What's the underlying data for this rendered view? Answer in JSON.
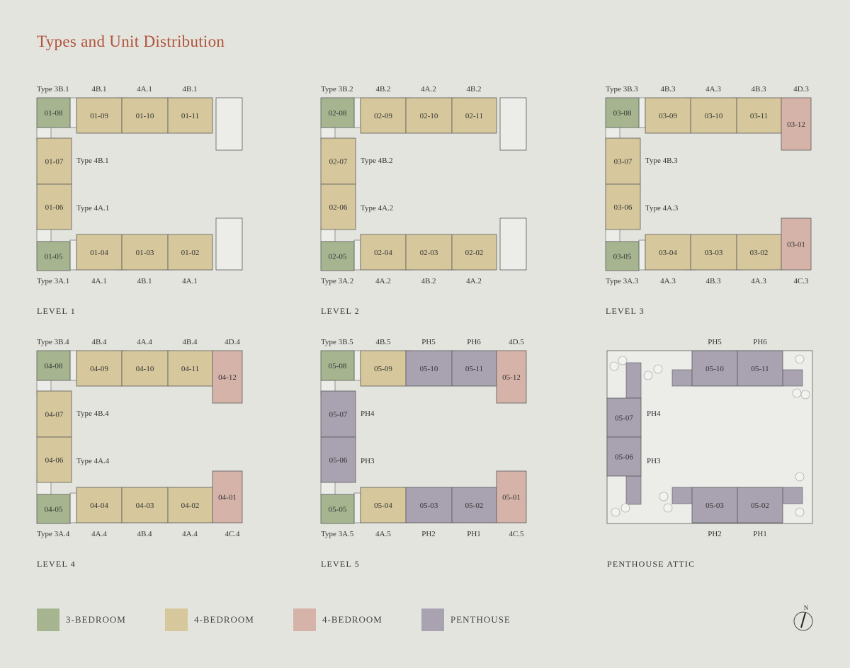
{
  "title": "Types and Unit Distribution",
  "colors": {
    "three_bedroom": "#a6b58f",
    "four_bedroom": "#d6c89c",
    "four_bedroom_corner": "#d5b3a9",
    "penthouse": "#a8a2b1",
    "background": "#e4e4df",
    "title": "#b0533b"
  },
  "levels": [
    {
      "name": "LEVEL 1",
      "top_labels": [
        "Type 3B.1",
        "4B.1",
        "4A.1",
        "4B.1",
        null
      ],
      "bottom_labels": [
        "Type 3A.1",
        "4A.1",
        "4B.1",
        "4A.1",
        null
      ],
      "side_labels": [
        "Type 4B.1",
        "Type 4A.1"
      ],
      "units": {
        "TL": [
          "01-08",
          "three_bedroom"
        ],
        "T1": [
          "01-09",
          "four_bedroom"
        ],
        "T2": [
          "01-10",
          "four_bedroom"
        ],
        "T3": [
          "01-11",
          "four_bedroom"
        ],
        "L1": [
          "01-07",
          "four_bedroom"
        ],
        "L2": [
          "01-06",
          "four_bedroom"
        ],
        "BL": [
          "01-05",
          "three_bedroom"
        ],
        "B1": [
          "01-04",
          "four_bedroom"
        ],
        "B2": [
          "01-03",
          "four_bedroom"
        ],
        "B3": [
          "01-02",
          "four_bedroom"
        ]
      }
    },
    {
      "name": "LEVEL 2",
      "top_labels": [
        "Type 3B.2",
        "4B.2",
        "4A.2",
        "4B.2",
        null
      ],
      "bottom_labels": [
        "Type 3A.2",
        "4A.2",
        "4B.2",
        "4A.2",
        null
      ],
      "side_labels": [
        "Type 4B.2",
        "Type 4A.2"
      ],
      "units": {
        "TL": [
          "02-08",
          "three_bedroom"
        ],
        "T1": [
          "02-09",
          "four_bedroom"
        ],
        "T2": [
          "02-10",
          "four_bedroom"
        ],
        "T3": [
          "02-11",
          "four_bedroom"
        ],
        "L1": [
          "02-07",
          "four_bedroom"
        ],
        "L2": [
          "02-06",
          "four_bedroom"
        ],
        "BL": [
          "02-05",
          "three_bedroom"
        ],
        "B1": [
          "02-04",
          "four_bedroom"
        ],
        "B2": [
          "02-03",
          "four_bedroom"
        ],
        "B3": [
          "02-02",
          "four_bedroom"
        ]
      }
    },
    {
      "name": "LEVEL 3",
      "top_labels": [
        "Type 3B.3",
        "4B.3",
        "4A.3",
        "4B.3",
        "4D.3"
      ],
      "bottom_labels": [
        "Type 3A.3",
        "4A.3",
        "4B.3",
        "4A.3",
        "4C.3"
      ],
      "side_labels": [
        "Type 4B.3",
        "Type 4A.3"
      ],
      "units": {
        "TL": [
          "03-08",
          "three_bedroom"
        ],
        "T1": [
          "03-09",
          "four_bedroom"
        ],
        "T2": [
          "03-10",
          "four_bedroom"
        ],
        "T3": [
          "03-11",
          "four_bedroom"
        ],
        "TR": [
          "03-12",
          "four_bedroom_corner"
        ],
        "L1": [
          "03-07",
          "four_bedroom"
        ],
        "L2": [
          "03-06",
          "four_bedroom"
        ],
        "BL": [
          "03-05",
          "three_bedroom"
        ],
        "B1": [
          "03-04",
          "four_bedroom"
        ],
        "B2": [
          "03-03",
          "four_bedroom"
        ],
        "B3": [
          "03-02",
          "four_bedroom"
        ],
        "BR": [
          "03-01",
          "four_bedroom_corner"
        ]
      }
    },
    {
      "name": "LEVEL 4",
      "top_labels": [
        "Type 3B.4",
        "4B.4",
        "4A.4",
        "4B.4",
        "4D.4"
      ],
      "bottom_labels": [
        "Type 3A.4",
        "4A.4",
        "4B.4",
        "4A.4",
        "4C.4"
      ],
      "side_labels": [
        "Type 4B.4",
        "Type 4A.4"
      ],
      "units": {
        "TL": [
          "04-08",
          "three_bedroom"
        ],
        "T1": [
          "04-09",
          "four_bedroom"
        ],
        "T2": [
          "04-10",
          "four_bedroom"
        ],
        "T3": [
          "04-11",
          "four_bedroom"
        ],
        "TR": [
          "04-12",
          "four_bedroom_corner"
        ],
        "L1": [
          "04-07",
          "four_bedroom"
        ],
        "L2": [
          "04-06",
          "four_bedroom"
        ],
        "BL": [
          "04-05",
          "three_bedroom"
        ],
        "B1": [
          "04-04",
          "four_bedroom"
        ],
        "B2": [
          "04-03",
          "four_bedroom"
        ],
        "B3": [
          "04-02",
          "four_bedroom"
        ],
        "BR": [
          "04-01",
          "four_bedroom_corner"
        ]
      }
    },
    {
      "name": "LEVEL 5",
      "top_labels": [
        "Type 3B.5",
        "4B.5",
        "PH5",
        "PH6",
        "4D.5"
      ],
      "bottom_labels": [
        "Type 3A.5",
        "4A.5",
        "PH2",
        "PH1",
        "4C.5"
      ],
      "side_labels": [
        "PH4",
        "PH3"
      ],
      "units": {
        "TL": [
          "05-08",
          "three_bedroom"
        ],
        "T1": [
          "05-09",
          "four_bedroom"
        ],
        "T2": [
          "05-10",
          "penthouse"
        ],
        "T3": [
          "05-11",
          "penthouse"
        ],
        "TR": [
          "05-12",
          "four_bedroom_corner"
        ],
        "L1": [
          "05-07",
          "penthouse"
        ],
        "L2": [
          "05-06",
          "penthouse"
        ],
        "BL": [
          "05-05",
          "three_bedroom"
        ],
        "B1": [
          "05-04",
          "four_bedroom"
        ],
        "B2": [
          "05-03",
          "penthouse"
        ],
        "B3": [
          "05-02",
          "penthouse"
        ],
        "BR": [
          "05-01",
          "four_bedroom_corner"
        ]
      }
    },
    {
      "name": "PENTHOUSE ATTIC",
      "attic": true,
      "top_labels": [
        null,
        null,
        "PH5",
        "PH6",
        null
      ],
      "bottom_labels": [
        null,
        null,
        "PH2",
        "PH1",
        null
      ],
      "side_labels": [
        "PH4",
        "PH3"
      ],
      "units": {
        "T2": [
          "05-10",
          "penthouse"
        ],
        "T3": [
          "05-11",
          "penthouse"
        ],
        "L1": [
          "05-07",
          "penthouse"
        ],
        "L2": [
          "05-06",
          "penthouse"
        ],
        "B2": [
          "05-03",
          "penthouse"
        ],
        "B3": [
          "05-02",
          "penthouse"
        ]
      }
    }
  ],
  "legend": [
    {
      "label": "3-BEDROOM",
      "category": "three_bedroom"
    },
    {
      "label": "4-BEDROOM",
      "category": "four_bedroom"
    },
    {
      "label": "4-BEDROOM",
      "category": "four_bedroom_corner"
    },
    {
      "label": "PENTHOUSE",
      "category": "penthouse"
    }
  ],
  "compass": {
    "label": "N",
    "icon": "north-arrow-icon"
  }
}
